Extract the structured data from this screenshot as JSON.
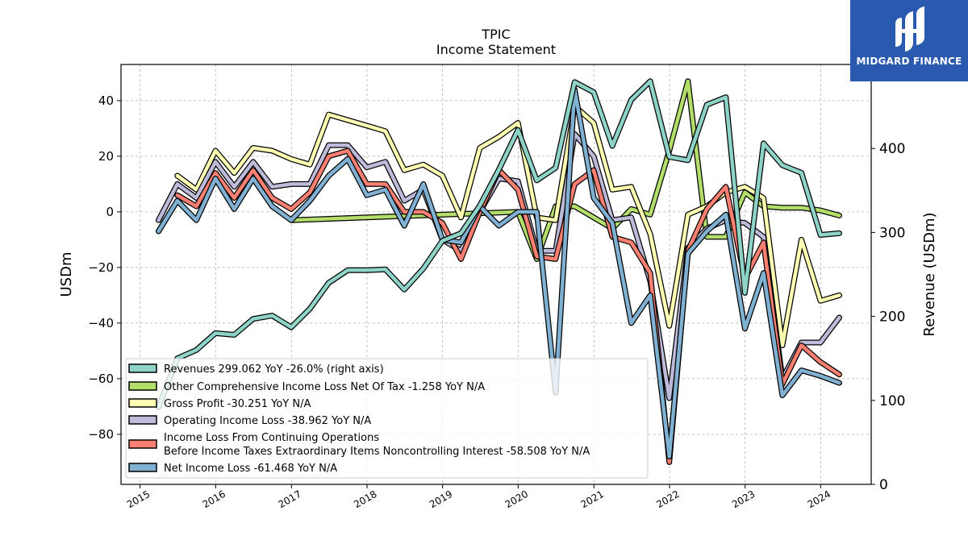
{
  "logo": {
    "brand_text": "MIDGARD FINANCE",
    "icon": "midgard-logo-icon",
    "background": "#2a5ab0"
  },
  "chart_data": {
    "type": "line",
    "title": "TPIC",
    "subtitle": "Income Statement",
    "ylabel": "USDm",
    "y2label": "Revenue (USDm)",
    "ylim": [
      -98,
      53
    ],
    "y2lim": [
      0,
      500
    ],
    "yticks": [
      40,
      20,
      0,
      -20,
      -40,
      -60,
      -80
    ],
    "y2ticks": [
      400,
      300,
      200,
      100,
      0
    ],
    "xticks": [
      "2015",
      "2016",
      "2017",
      "2018",
      "2019",
      "2020",
      "2021",
      "2022",
      "2023",
      "2024"
    ],
    "grid": true,
    "legend_position": "lower-left",
    "series": [
      {
        "name": "Revenues  299.062 YoY -26.0% (right axis)",
        "axis": "right",
        "color": "#8dd3c7",
        "x": [
          "2015-03-31",
          "2015-06-30",
          "2015-09-30",
          "2015-12-31",
          "2016-03-31",
          "2016-06-30",
          "2016-09-30",
          "2016-12-31",
          "2017-03-31",
          "2017-06-30",
          "2017-09-30",
          "2017-12-31",
          "2018-03-31",
          "2018-06-30",
          "2018-09-30",
          "2018-12-31",
          "2019-03-31",
          "2019-06-30",
          "2019-09-30",
          "2019-12-31",
          "2020-03-31",
          "2020-06-30",
          "2020-09-30",
          "2020-12-31",
          "2021-03-31",
          "2021-06-30",
          "2021-09-30",
          "2021-12-31",
          "2022-03-31",
          "2022-06-30",
          "2022-09-30",
          "2022-12-31",
          "2023-03-31",
          "2023-06-30",
          "2023-09-30",
          "2023-12-31",
          "2024-03-31"
        ],
        "values": [
          92,
          150,
          160,
          180,
          178,
          197,
          201,
          187,
          209,
          240,
          255,
          255,
          256,
          232,
          257,
          290,
          299,
          332,
          375,
          422,
          362,
          377,
          479,
          467,
          403,
          458,
          480,
          390,
          386,
          452,
          461,
          228,
          406,
          380,
          371,
          297,
          299
        ]
      },
      {
        "name": "Other Comprehensive Income Loss Net Of Tax  -1.258 YoY N/A",
        "axis": "left",
        "color": "#b3de69",
        "x": [
          "2016-12-31",
          "2019-12-31",
          "2020-03-31",
          "2020-06-30",
          "2020-09-30",
          "2020-12-31",
          "2021-03-31",
          "2021-06-30",
          "2021-09-30",
          "2021-12-31",
          "2022-03-31",
          "2022-06-30",
          "2022-09-30",
          "2022-12-31",
          "2023-03-31",
          "2023-06-30",
          "2023-09-30",
          "2023-12-31",
          "2024-03-31"
        ],
        "values": [
          -3,
          0,
          -17,
          2,
          2,
          -2,
          -6,
          1,
          -1,
          22,
          47,
          -9,
          -9,
          7,
          2,
          1.5,
          1.5,
          0.5,
          -1.3
        ]
      },
      {
        "name": "Gross Profit  -30.251 YoY N/A",
        "axis": "left",
        "color": "#ffffb3",
        "x": [
          "2015-06-30",
          "2015-09-30",
          "2015-12-31",
          "2016-03-31",
          "2016-06-30",
          "2016-09-30",
          "2016-12-31",
          "2017-03-31",
          "2017-06-30",
          "2017-09-30",
          "2017-12-31",
          "2018-03-31",
          "2018-06-30",
          "2018-09-30",
          "2018-12-31",
          "2019-03-31",
          "2019-06-30",
          "2019-09-30",
          "2019-12-31",
          "2020-03-31",
          "2020-06-30",
          "2020-09-30",
          "2020-12-31",
          "2021-03-31",
          "2021-06-30",
          "2021-09-30",
          "2021-12-31",
          "2022-03-31",
          "2022-06-30",
          "2022-09-30",
          "2022-12-31",
          "2023-03-31",
          "2023-06-30",
          "2023-09-30",
          "2023-12-31",
          "2024-03-31"
        ],
        "values": [
          13,
          8,
          22,
          14,
          23,
          22,
          19,
          17,
          35,
          33,
          31,
          29,
          15,
          17,
          13,
          -2,
          23,
          27,
          32,
          -2,
          -3,
          38,
          32,
          8,
          9,
          -8,
          -41,
          -1,
          2,
          7,
          9,
          5,
          -48,
          -10,
          -32,
          -30
        ]
      },
      {
        "name": "Operating Income Loss  -38.962 YoY N/A",
        "axis": "left",
        "color": "#bebada",
        "x": [
          "2015-03-31",
          "2015-06-30",
          "2015-09-30",
          "2015-12-31",
          "2016-03-31",
          "2016-06-30",
          "2016-09-30",
          "2016-12-31",
          "2017-03-31",
          "2017-06-30",
          "2017-09-30",
          "2017-12-31",
          "2018-03-31",
          "2018-06-30",
          "2018-09-30",
          "2018-12-31",
          "2019-03-31",
          "2019-06-30",
          "2019-09-30",
          "2019-12-31",
          "2020-03-31",
          "2020-06-30",
          "2020-09-30",
          "2020-12-31",
          "2021-03-31",
          "2021-06-30",
          "2021-09-30",
          "2021-12-31",
          "2022-03-31",
          "2022-06-30",
          "2022-09-30",
          "2022-12-31",
          "2023-03-31",
          "2023-06-30",
          "2023-09-30",
          "2023-12-31",
          "2024-03-31"
        ],
        "values": [
          -3,
          10,
          5,
          18,
          9,
          18,
          9,
          10,
          10,
          24,
          24,
          16,
          18,
          4,
          8,
          -10,
          -14,
          0,
          12,
          11,
          -14,
          -14,
          28,
          20,
          -3,
          -2,
          -25,
          -67,
          -13,
          -6,
          -3,
          -4,
          -9,
          -60,
          -47,
          -47,
          -38
        ]
      },
      {
        "name": "Income Loss From Continuing Operations\nBefore Income Taxes Extraordinary Items Noncontrolling Interest  -58.508 YoY N/A",
        "axis": "left",
        "color": "#fb8072",
        "x": [
          "2015-06-30",
          "2015-09-30",
          "2015-12-31",
          "2016-03-31",
          "2016-06-30",
          "2016-09-30",
          "2016-12-31",
          "2017-03-31",
          "2017-06-30",
          "2017-09-30",
          "2017-12-31",
          "2018-03-31",
          "2018-06-30",
          "2018-09-30",
          "2018-12-31",
          "2019-03-31",
          "2019-06-30",
          "2019-09-30",
          "2019-12-31",
          "2020-03-31",
          "2020-06-30",
          "2020-09-30",
          "2020-12-31",
          "2021-03-31",
          "2021-06-30",
          "2021-09-30",
          "2021-12-31",
          "2022-03-31",
          "2022-06-30",
          "2022-09-30",
          "2022-12-31",
          "2023-03-31",
          "2023-06-30",
          "2023-09-30",
          "2023-12-31",
          "2024-03-31"
        ],
        "values": [
          6,
          2,
          14,
          5,
          15,
          5,
          1,
          7,
          20,
          22,
          10,
          10,
          0,
          0,
          -4,
          -17,
          0,
          15,
          8,
          -16,
          -17,
          10,
          15,
          -9,
          -11,
          -22,
          -90,
          -14,
          1,
          9,
          -24,
          -11,
          -62,
          -48,
          -54,
          -58.5
        ]
      },
      {
        "name": "Net Income Loss  -61.468 YoY N/A",
        "axis": "left",
        "color": "#80b1d3",
        "x": [
          "2015-03-31",
          "2015-06-30",
          "2015-09-30",
          "2015-12-31",
          "2016-03-31",
          "2016-06-30",
          "2016-09-30",
          "2016-12-31",
          "2017-03-31",
          "2017-06-30",
          "2017-09-30",
          "2017-12-31",
          "2018-03-31",
          "2018-06-30",
          "2018-09-30",
          "2018-12-31",
          "2019-03-31",
          "2019-06-30",
          "2019-09-30",
          "2019-12-31",
          "2020-03-31",
          "2020-06-30",
          "2020-09-30",
          "2020-12-31",
          "2021-03-31",
          "2021-06-30",
          "2021-09-30",
          "2021-12-31",
          "2022-03-31",
          "2022-06-30",
          "2022-09-30",
          "2022-12-31",
          "2023-03-31",
          "2023-06-30",
          "2023-09-30",
          "2023-12-31",
          "2024-03-31"
        ],
        "values": [
          -7,
          4,
          -3,
          12,
          1,
          12,
          2,
          -3,
          4,
          13,
          19,
          6,
          8,
          -5,
          10,
          -10,
          -11,
          2,
          -5,
          0,
          0,
          -65,
          44,
          5,
          -4,
          -40,
          -30,
          -88,
          -15,
          -7,
          -1,
          -42,
          -22,
          -66,
          -57,
          -59,
          -61.5
        ]
      }
    ]
  }
}
